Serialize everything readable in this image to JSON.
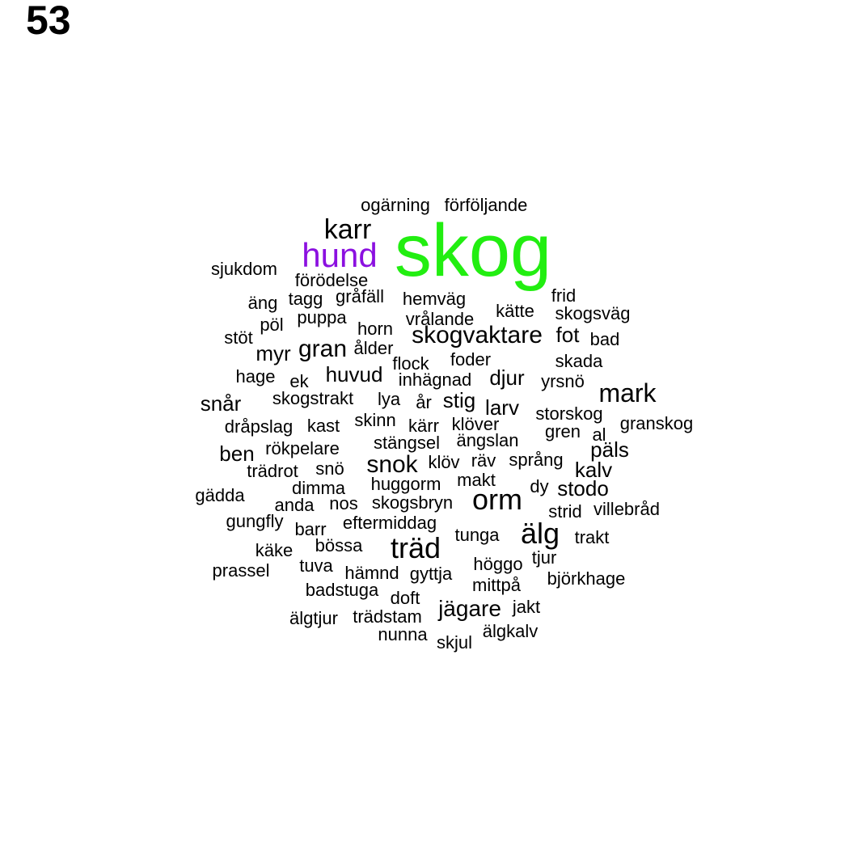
{
  "page_number": "53",
  "colors": {
    "default": "#000000",
    "skog": "#22ee11",
    "hund": "#8b10e0"
  },
  "words": [
    {
      "text": "skog",
      "color": "#22ee11"
    },
    {
      "text": "hund",
      "color": "#8b10e0"
    },
    {
      "text": "karr"
    },
    {
      "text": "ogärning"
    },
    {
      "text": "förföljande"
    },
    {
      "text": "sjukdom"
    },
    {
      "text": "förödelse"
    },
    {
      "text": "äng"
    },
    {
      "text": "tagg"
    },
    {
      "text": "gråfäll"
    },
    {
      "text": "hemväg"
    },
    {
      "text": "frid"
    },
    {
      "text": "kätte"
    },
    {
      "text": "skogsväg"
    },
    {
      "text": "pöl"
    },
    {
      "text": "puppa"
    },
    {
      "text": "vrålande"
    },
    {
      "text": "stöt"
    },
    {
      "text": "horn"
    },
    {
      "text": "skogvaktare"
    },
    {
      "text": "fot"
    },
    {
      "text": "bad"
    },
    {
      "text": "myr"
    },
    {
      "text": "gran"
    },
    {
      "text": "ålder"
    },
    {
      "text": "foder"
    },
    {
      "text": "skada"
    },
    {
      "text": "flock"
    },
    {
      "text": "hage"
    },
    {
      "text": "ek"
    },
    {
      "text": "huvud"
    },
    {
      "text": "inhägnad"
    },
    {
      "text": "djur"
    },
    {
      "text": "yrsnö"
    },
    {
      "text": "mark"
    },
    {
      "text": "snår"
    },
    {
      "text": "skogstrakt"
    },
    {
      "text": "lya"
    },
    {
      "text": "år"
    },
    {
      "text": "stig"
    },
    {
      "text": "larv"
    },
    {
      "text": "storskog"
    },
    {
      "text": "dråpslag"
    },
    {
      "text": "kast"
    },
    {
      "text": "skinn"
    },
    {
      "text": "kärr"
    },
    {
      "text": "klöver"
    },
    {
      "text": "gren"
    },
    {
      "text": "al"
    },
    {
      "text": "granskog"
    },
    {
      "text": "ben"
    },
    {
      "text": "rökpelare"
    },
    {
      "text": "stängsel"
    },
    {
      "text": "ängslan"
    },
    {
      "text": "päls"
    },
    {
      "text": "trädrot"
    },
    {
      "text": "snö"
    },
    {
      "text": "snok"
    },
    {
      "text": "klöv"
    },
    {
      "text": "räv"
    },
    {
      "text": "språng"
    },
    {
      "text": "kalv"
    },
    {
      "text": "gädda"
    },
    {
      "text": "dimma"
    },
    {
      "text": "huggorm"
    },
    {
      "text": "makt"
    },
    {
      "text": "dy"
    },
    {
      "text": "stodo"
    },
    {
      "text": "anda"
    },
    {
      "text": "nos"
    },
    {
      "text": "skogsbryn"
    },
    {
      "text": "orm"
    },
    {
      "text": "strid"
    },
    {
      "text": "villebråd"
    },
    {
      "text": "gungfly"
    },
    {
      "text": "eftermiddag"
    },
    {
      "text": "barr"
    },
    {
      "text": "älg"
    },
    {
      "text": "tunga"
    },
    {
      "text": "trakt"
    },
    {
      "text": "käke"
    },
    {
      "text": "bössa"
    },
    {
      "text": "träd"
    },
    {
      "text": "tjur"
    },
    {
      "text": "prassel"
    },
    {
      "text": "tuva"
    },
    {
      "text": "hämnd"
    },
    {
      "text": "gyttja"
    },
    {
      "text": "höggo"
    },
    {
      "text": "mittpå"
    },
    {
      "text": "björkhage"
    },
    {
      "text": "badstuga"
    },
    {
      "text": "doft"
    },
    {
      "text": "jägare"
    },
    {
      "text": "jakt"
    },
    {
      "text": "älgtjur"
    },
    {
      "text": "trädstam"
    },
    {
      "text": "nunna"
    },
    {
      "text": "skjul"
    },
    {
      "text": "älgkalv"
    }
  ]
}
